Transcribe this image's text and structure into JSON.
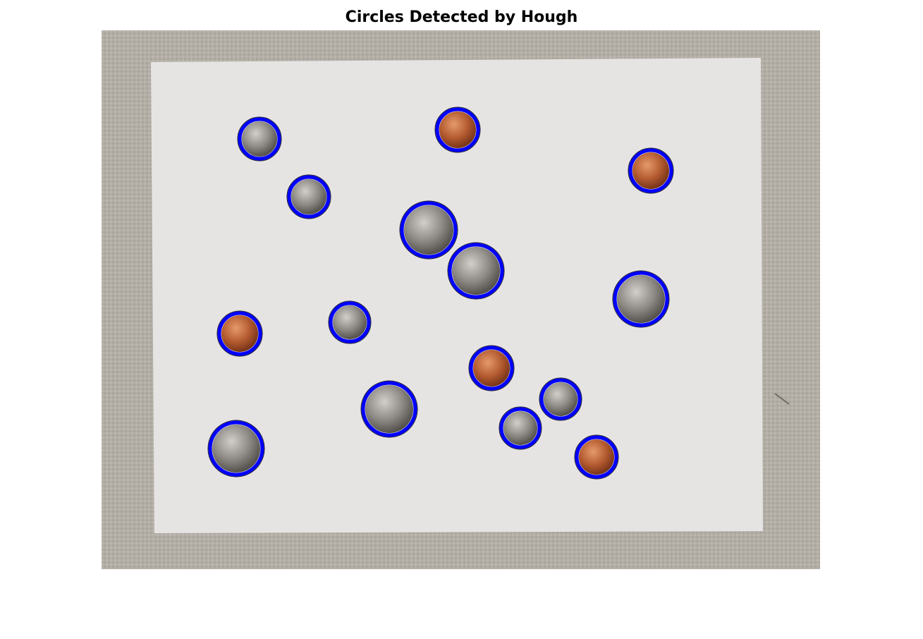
{
  "figure": {
    "title": "Circles Detected by Hough"
  },
  "image": {
    "subject": "coins on white paper over gray fabric",
    "detection_color": "#0000ff",
    "coins": [
      {
        "type": "quarter",
        "material": "silver"
      },
      {
        "type": "quarter",
        "material": "silver"
      },
      {
        "type": "quarter",
        "material": "silver"
      },
      {
        "type": "quarter",
        "material": "silver"
      },
      {
        "type": "quarter",
        "material": "silver"
      },
      {
        "type": "dime",
        "material": "silver"
      },
      {
        "type": "dime",
        "material": "silver"
      },
      {
        "type": "dime",
        "material": "silver"
      },
      {
        "type": "dime",
        "material": "silver"
      },
      {
        "type": "dime",
        "material": "silver"
      },
      {
        "type": "penny",
        "material": "copper"
      },
      {
        "type": "penny",
        "material": "copper"
      },
      {
        "type": "penny",
        "material": "copper"
      },
      {
        "type": "penny",
        "material": "copper"
      },
      {
        "type": "penny",
        "material": "copper"
      }
    ]
  }
}
